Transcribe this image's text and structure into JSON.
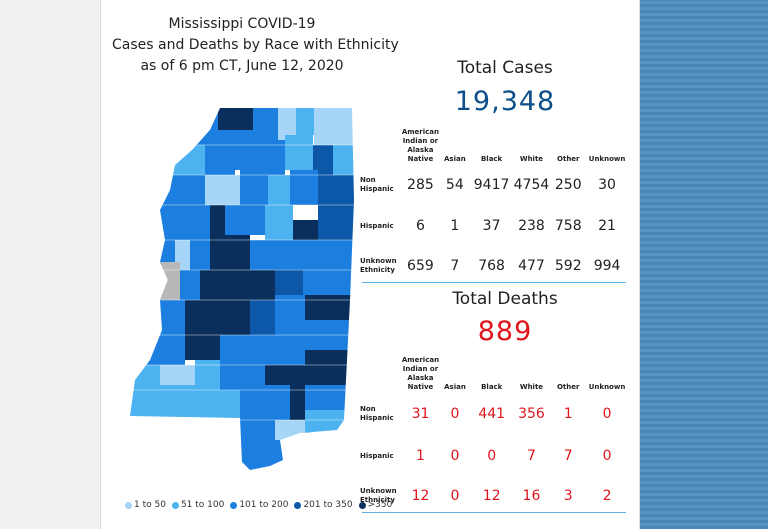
{
  "title": {
    "line1": "Mississippi COVID-19",
    "line2": "Cases and Deaths by Race with Ethnicity",
    "line3": "as of 6 pm CT, June 12, 2020"
  },
  "colors": {
    "bin1": "#a6d5f7",
    "bin2": "#4db3f0",
    "bin3": "#1c7fe0",
    "bin4": "#0d57a8",
    "bin5": "#0a2f5c",
    "cases_total": "#0d4f8b",
    "deaths": "#e0151b"
  },
  "legend": [
    {
      "label": "1 to 50",
      "color": "#a6d5f7"
    },
    {
      "label": "51 to 100",
      "color": "#4db3f0"
    },
    {
      "label": "101 to 200",
      "color": "#1c7fe0"
    },
    {
      "label": "201 to 350",
      "color": "#0d57a8"
    },
    {
      "label": ">350",
      "color": "#0a2f5c"
    }
  ],
  "cases": {
    "heading": "Total Cases",
    "total": "19,348",
    "columns": [
      "American Indian or Alaska Native",
      "Asian",
      "Black",
      "White",
      "Other",
      "Unknown"
    ],
    "rows": [
      {
        "label": "Non Hispanic",
        "values": [
          "285",
          "54",
          "9417",
          "4754",
          "250",
          "30"
        ]
      },
      {
        "label": "Hispanic",
        "values": [
          "6",
          "1",
          "37",
          "238",
          "758",
          "21"
        ]
      },
      {
        "label": "Unknown Ethnicity",
        "values": [
          "659",
          "7",
          "768",
          "477",
          "592",
          "994"
        ]
      }
    ]
  },
  "deaths": {
    "heading": "Total Deaths",
    "total": "889",
    "columns": [
      "American Indian or Alaska Native",
      "Asian",
      "Black",
      "White",
      "Other",
      "Unknown"
    ],
    "rows": [
      {
        "label": "Non Hispanic",
        "values": [
          "31",
          "0",
          "441",
          "356",
          "1",
          "0"
        ]
      },
      {
        "label": "Hispanic",
        "values": [
          "1",
          "0",
          "0",
          "7",
          "7",
          "0"
        ]
      },
      {
        "label": "Unknown Ethnicity",
        "values": [
          "12",
          "0",
          "12",
          "16",
          "3",
          "2"
        ]
      }
    ]
  },
  "chart_data": [
    {
      "type": "table",
      "title": "Total Cases",
      "total": 19348,
      "categories": [
        "American Indian or Alaska Native",
        "Asian",
        "Black",
        "White",
        "Other",
        "Unknown"
      ],
      "series": [
        {
          "name": "Non Hispanic",
          "values": [
            285,
            54,
            9417,
            4754,
            250,
            30
          ]
        },
        {
          "name": "Hispanic",
          "values": [
            6,
            1,
            37,
            238,
            758,
            21
          ]
        },
        {
          "name": "Unknown Ethnicity",
          "values": [
            659,
            7,
            768,
            477,
            592,
            994
          ]
        }
      ]
    },
    {
      "type": "table",
      "title": "Total Deaths",
      "total": 889,
      "categories": [
        "American Indian or Alaska Native",
        "Asian",
        "Black",
        "White",
        "Other",
        "Unknown"
      ],
      "series": [
        {
          "name": "Non Hispanic",
          "values": [
            31,
            0,
            441,
            356,
            1,
            0
          ]
        },
        {
          "name": "Hispanic",
          "values": [
            1,
            0,
            0,
            7,
            7,
            0
          ]
        },
        {
          "name": "Unknown Ethnicity",
          "values": [
            12,
            0,
            12,
            16,
            3,
            2
          ]
        }
      ]
    }
  ]
}
